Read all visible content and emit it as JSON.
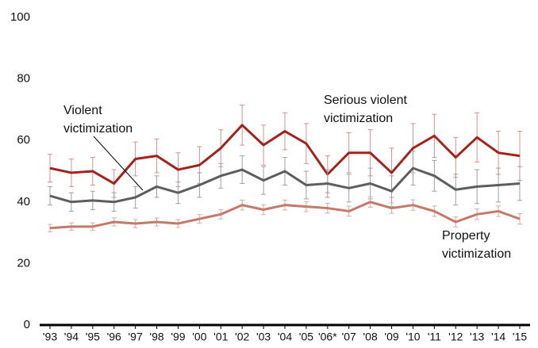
{
  "chart_data": {
    "type": "line",
    "categories": [
      "'93",
      "'94",
      "'95",
      "'96",
      "'97",
      "'98",
      "'99",
      "'00",
      "'01",
      "'02",
      "'03",
      "'04",
      "'05",
      "'06*",
      "'07",
      "'08",
      "'09",
      "'10",
      "'11",
      "'12",
      "'13",
      "'14",
      "'15"
    ],
    "ylim": [
      0,
      100
    ],
    "yticks": [
      0,
      20,
      40,
      60,
      80,
      100
    ],
    "series": [
      {
        "name": "Serious violent victimization",
        "label_lines": [
          "Serious violent",
          "victimization"
        ],
        "color": "#a5211c",
        "error_color": "#d9908a",
        "values": [
          51,
          49.5,
          50,
          46,
          54,
          55,
          50.5,
          52,
          57.5,
          65,
          58.5,
          63,
          59,
          49,
          56,
          56,
          49.5,
          57.5,
          61.5,
          54.5,
          61,
          56,
          55
        ],
        "errors": [
          4.5,
          4.5,
          4.5,
          4.5,
          5.5,
          5.5,
          5.5,
          6,
          6,
          6.5,
          6.5,
          6,
          6.5,
          6,
          6.5,
          7.5,
          8,
          8,
          7,
          6.5,
          8,
          7,
          8
        ]
      },
      {
        "name": "Violent victimization",
        "label_lines": [
          "Violent",
          "victimization"
        ],
        "color": "#5e5e5e",
        "error_color": "#a0a0a0",
        "values": [
          42,
          40,
          40.5,
          40,
          41.5,
          45,
          43,
          45.5,
          48.5,
          50.5,
          47,
          50,
          45.5,
          46,
          44.5,
          46,
          43.5,
          51,
          48.5,
          44,
          45,
          45.5,
          46
        ],
        "errors": [
          3,
          3,
          3,
          3,
          3.5,
          3.5,
          3.5,
          4,
          4,
          4.5,
          4.5,
          4.5,
          4.5,
          4.5,
          4.5,
          5,
          5,
          5.5,
          5,
          5,
          5.5,
          5.5,
          5.5
        ]
      },
      {
        "name": "Property victimization",
        "label_lines": [
          "Property",
          "victimization"
        ],
        "color": "#c97767",
        "error_color": "#dfa99c",
        "values": [
          31.5,
          32,
          32,
          33.5,
          33,
          33.5,
          33,
          34.5,
          36,
          39,
          37.5,
          39,
          38.5,
          38,
          37,
          40,
          38,
          39,
          37,
          33.5,
          36,
          37,
          34.5
        ],
        "errors": [
          1.2,
          1.2,
          1.2,
          1.3,
          1.3,
          1.3,
          1.3,
          1.4,
          1.5,
          1.6,
          1.6,
          1.6,
          1.6,
          1.6,
          1.6,
          1.7,
          1.7,
          1.7,
          1.7,
          1.6,
          1.7,
          1.7,
          1.7
        ]
      }
    ]
  }
}
